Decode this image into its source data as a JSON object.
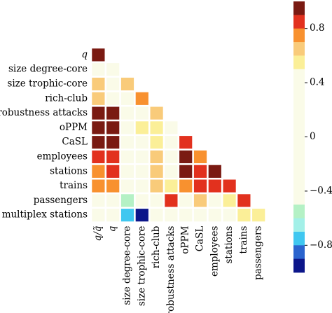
{
  "chart_data": {
    "type": "heatmap",
    "variables": [
      "q/q̃",
      "q",
      "size degree-core",
      "size trophic-core",
      "rich-club",
      "robustness attacks",
      "oPPM",
      "CaSL",
      "employees",
      "stations",
      "trains",
      "passengers",
      "multiplex stations"
    ],
    "row_labels": [
      "q",
      "size degree-core",
      "size trophic-core",
      "rich-club",
      "robustness attacks",
      "oPPM",
      "CaSL",
      "employees",
      "stations",
      "trains",
      "passengers",
      "multiplex stations"
    ],
    "col_labels": [
      "q/q̃",
      "q",
      "size degree-core",
      "size trophic-core",
      "rich-club",
      "robustness attacks",
      "oPPM",
      "CaSL",
      "employees",
      "stations",
      "trains",
      "passengers"
    ],
    "values": [
      [
        0.98
      ],
      [
        0.1,
        0.1
      ],
      [
        0.65,
        0.1,
        0.62
      ],
      [
        0.65,
        0.1,
        0.1,
        0.78
      ],
      [
        0.98,
        0.98,
        0.1,
        0.1,
        0.6
      ],
      [
        0.98,
        0.98,
        0.1,
        0.52,
        0.52,
        0.1
      ],
      [
        0.98,
        0.98,
        0.1,
        0.1,
        0.52,
        0.1,
        0.88
      ],
      [
        0.88,
        0.85,
        0.1,
        0.1,
        0.62,
        0.1,
        0.98,
        0.75
      ],
      [
        0.75,
        0.85,
        0.1,
        0.1,
        0.62,
        0.1,
        0.98,
        0.88,
        0.98
      ],
      [
        0.75,
        0.78,
        0.1,
        0.1,
        0.65,
        0.55,
        0.75,
        0.88,
        0.82,
        0.88
      ],
      [
        0.1,
        0.1,
        -0.55,
        0.1,
        0.1,
        0.85,
        0.1,
        0.62,
        0.1,
        0.52,
        0.88
      ],
      [
        0.1,
        0.1,
        -0.78,
        -0.98,
        0.1,
        0.1,
        0.1,
        0.1,
        0.1,
        0.1,
        0.52,
        0.52
      ]
    ],
    "colorbar": {
      "min": -1.0,
      "max": 1.0,
      "ticks": [
        0.8,
        0.4,
        0,
        -0.4,
        -0.8
      ],
      "tick_labels": [
        "0.8",
        "0.4",
        "0",
        "−0.4",
        "−0.8"
      ],
      "position": "right"
    },
    "colors": {
      "strong_positive": "#7a1a12",
      "high_positive": "#e2311e",
      "mid_positive": "#f8912f",
      "light_positive": "#f9cb7a",
      "faint_positive": "#fbef98",
      "neutral": "#fafbe8",
      "faint_negative": "#b4f1c5",
      "light_negative": "#a3f0e8",
      "mid_negative": "#3fc7f0",
      "high_negative": "#2a64ce",
      "strong_negative": "#0c168a"
    }
  }
}
